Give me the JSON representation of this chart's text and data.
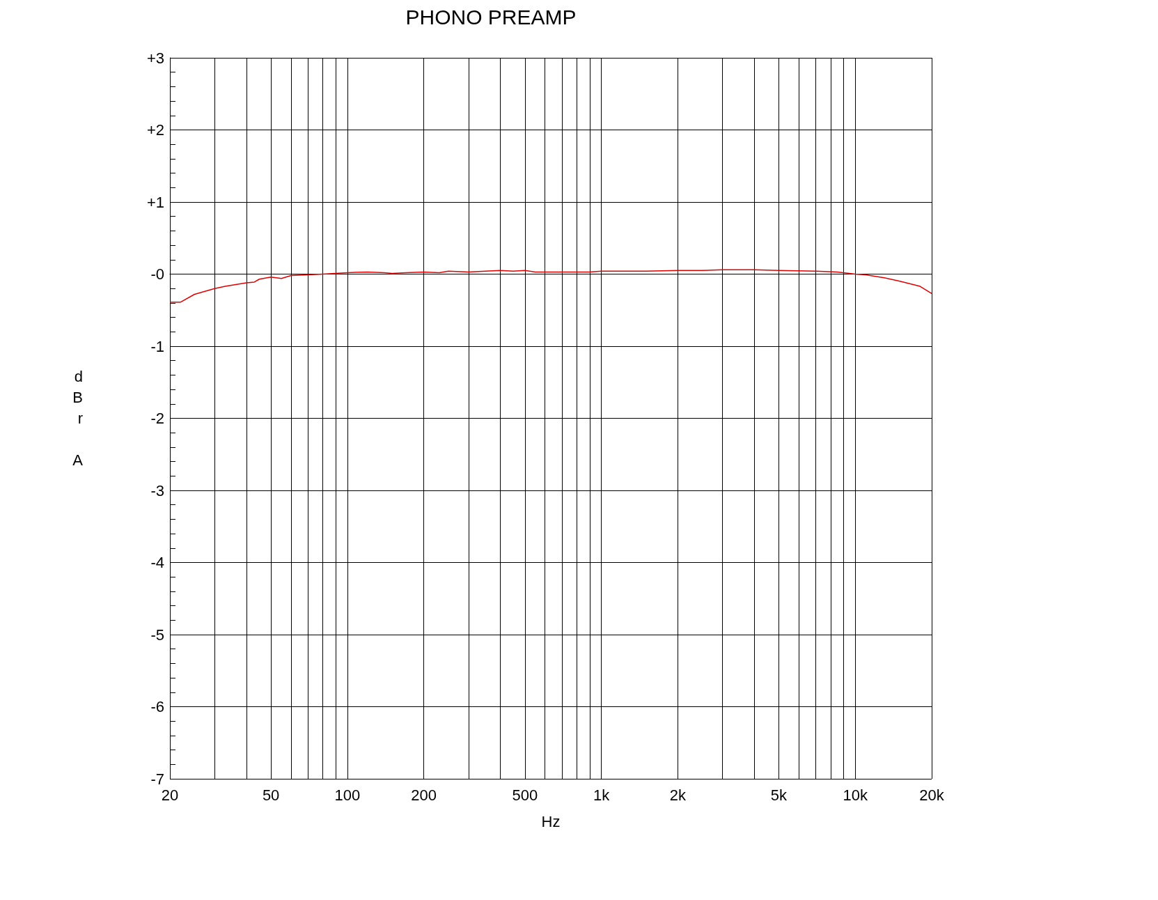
{
  "chart_data": {
    "type": "line",
    "title": "PHONO PREAMP",
    "xlabel": "Hz",
    "ylabel": "dBr A",
    "log": "x",
    "grid": true,
    "marker": "none",
    "line_style": "solid",
    "xlim": [
      20,
      20000
    ],
    "xticks": [
      20,
      {
        "value": 30,
        "label": null
      },
      {
        "value": 40,
        "label": null
      },
      50,
      {
        "value": 60,
        "label": null
      },
      {
        "value": 70,
        "label": null
      },
      {
        "value": 80,
        "label": null
      },
      {
        "value": 90,
        "label": null
      },
      100,
      200,
      {
        "value": 300,
        "label": null
      },
      {
        "value": 400,
        "label": null
      },
      500,
      {
        "value": 600,
        "label": null
      },
      {
        "value": 700,
        "label": null
      },
      {
        "value": 800,
        "label": null
      },
      {
        "value": 900,
        "label": null
      },
      {
        "value": 1000,
        "label": "1k"
      },
      {
        "value": 2000,
        "label": "2k"
      },
      {
        "value": 3000,
        "label": null
      },
      {
        "value": 4000,
        "label": null
      },
      {
        "value": 5000,
        "label": "5k"
      },
      {
        "value": 6000,
        "label": null
      },
      {
        "value": 7000,
        "label": null
      },
      {
        "value": 8000,
        "label": null
      },
      {
        "value": 9000,
        "label": null
      },
      {
        "value": 10000,
        "label": "10k"
      },
      {
        "value": 20000,
        "label": "20k"
      }
    ],
    "ylim": [
      -7,
      3
    ],
    "yticks": [
      {
        "value": 3,
        "label": "+3"
      },
      {
        "value": 2,
        "label": "+2"
      },
      {
        "value": 1,
        "label": "+1"
      },
      {
        "value": 0,
        "label": "-0"
      },
      -1,
      -2,
      -3,
      -4,
      -5,
      -6,
      -7
    ],
    "series": [
      {
        "color": "#e00000",
        "x": [
          20,
          22,
          25,
          30,
          33,
          40,
          43,
          45,
          50,
          55,
          60,
          70,
          80,
          100,
          120,
          140,
          150,
          170,
          200,
          230,
          250,
          300,
          350,
          400,
          450,
          500,
          550,
          700,
          800,
          900,
          1000,
          1500,
          2000,
          2500,
          3000,
          4000,
          5000,
          7000,
          8500,
          10000,
          11000,
          13000,
          15000,
          18000,
          20000
        ],
        "values": [
          -0.39,
          -0.39,
          -0.28,
          -0.2,
          -0.17,
          -0.12,
          -0.11,
          -0.07,
          -0.04,
          -0.06,
          -0.02,
          -0.01,
          0,
          0.02,
          0.03,
          0.02,
          0.01,
          0.02,
          0.03,
          0.02,
          0.04,
          0.03,
          0.04,
          0.05,
          0.04,
          0.05,
          0.03,
          0.03,
          0.03,
          0.03,
          0.04,
          0.04,
          0.05,
          0.05,
          0.06,
          0.06,
          0.05,
          0.04,
          0.03,
          0,
          -0.01,
          -0.05,
          -0.1,
          -0.17,
          -0.27
        ]
      }
    ]
  }
}
